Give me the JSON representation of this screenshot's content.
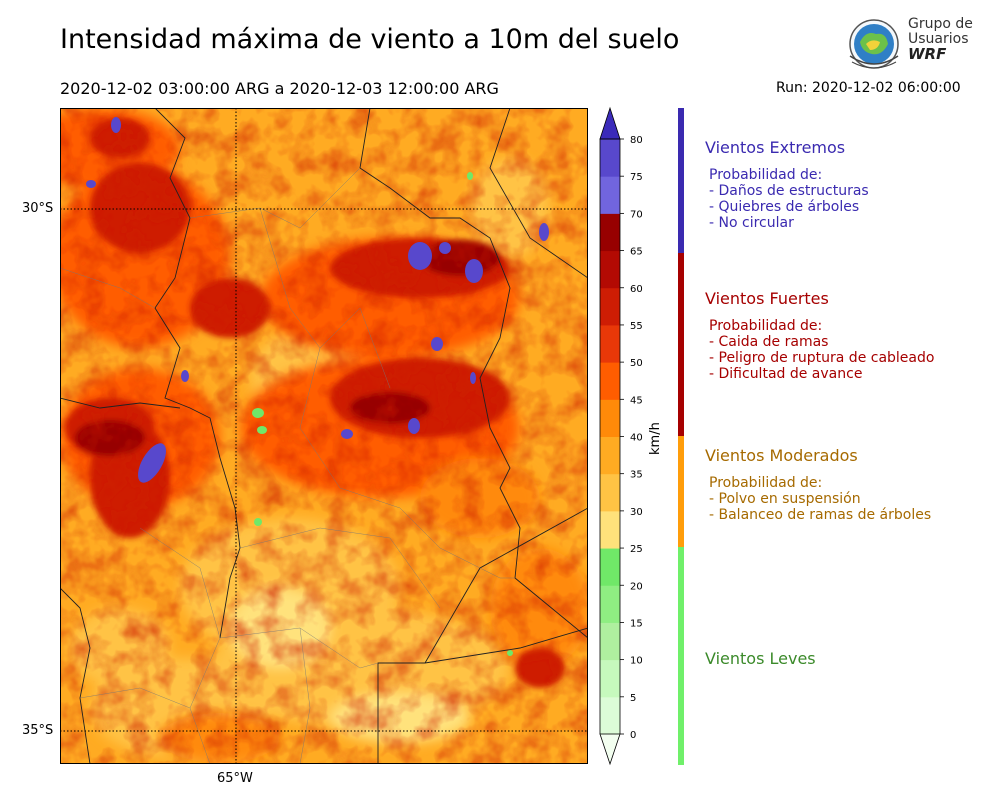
{
  "header": {
    "title": "Intensidad máxima de viento a 10m del suelo",
    "period": "2020-12-02 03:00:00 ARG  a  2020-12-03 12:00:00 ARG",
    "run": "Run: 2020-12-02 06:00:00"
  },
  "logo": {
    "line1": "Grupo de",
    "line2": "Usuarios",
    "line3": "WRF"
  },
  "map": {
    "lat_labels": [
      "30°S",
      "35°S"
    ],
    "lon_labels": [
      "65°W"
    ]
  },
  "colorbar": {
    "unit": "km/h",
    "ticks": [
      "0",
      "5",
      "10",
      "15",
      "20",
      "25",
      "30",
      "35",
      "40",
      "45",
      "50",
      "55",
      "60",
      "65",
      "70",
      "75",
      "80"
    ],
    "colors": [
      "#f3fff0",
      "#dcfcd7",
      "#c6f9bd",
      "#afef9f",
      "#8fee82",
      "#70e868",
      "#ffe27b",
      "#ffc344",
      "#ffab22",
      "#ff8a09",
      "#ff5d00",
      "#e83808",
      "#ce1d04",
      "#b30a03",
      "#970000",
      "#7165de",
      "#5848cc",
      "#3b2bba"
    ]
  },
  "categories": [
    {
      "title": "Vientos Extremos",
      "color": "#3a2ab0",
      "lines": [
        "Probabilidad de:",
        "- Daños de estructuras",
        "- Quiebres de árboles",
        "- No circular"
      ]
    },
    {
      "title": "Vientos Fuertes",
      "color": "#a60000",
      "lines": [
        "Probabilidad de:",
        "- Caida de ramas",
        "- Peligro de ruptura de cableado",
        "- Dificultad de avance"
      ]
    },
    {
      "title": "Vientos Moderados",
      "color": "#a66a00",
      "lines": [
        "Probabilidad de:",
        "- Polvo en suspensión",
        "- Balanceo de ramas de árboles"
      ]
    },
    {
      "title": "Vientos Leves",
      "color": "#3b8a2a",
      "lines": []
    }
  ]
}
